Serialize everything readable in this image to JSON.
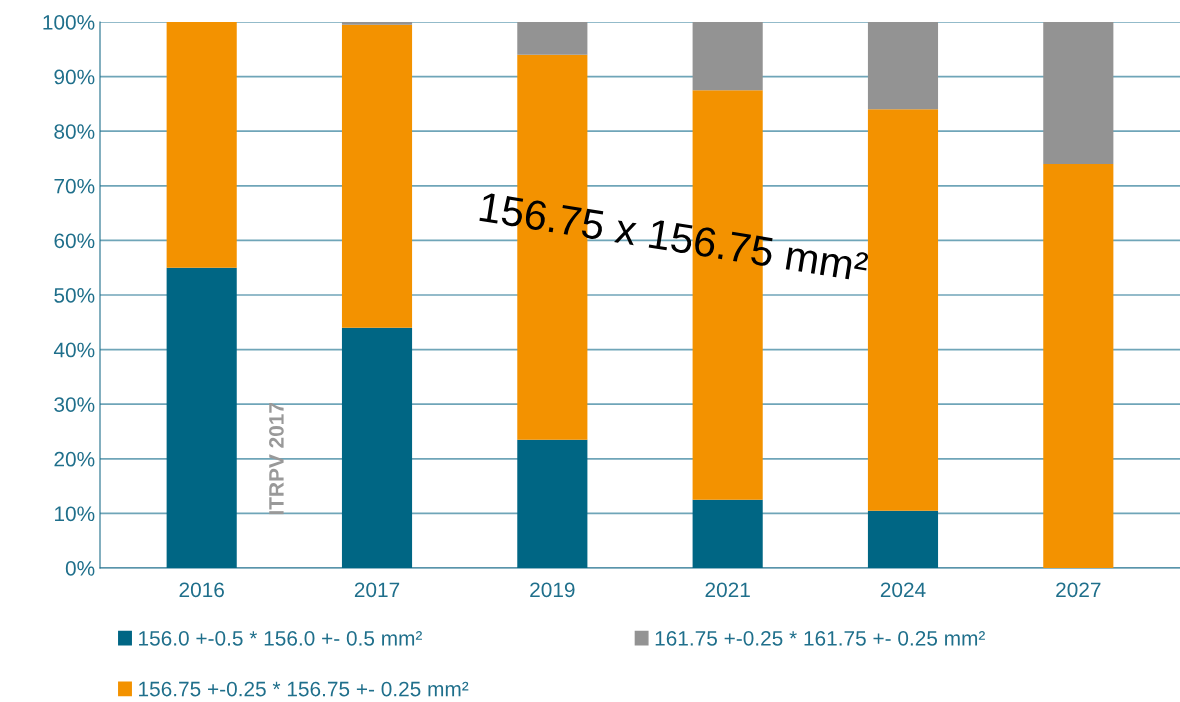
{
  "chart_data": {
    "type": "bar",
    "stacked": true,
    "categories": [
      "2016",
      "2017",
      "2019",
      "2021",
      "2024",
      "2027"
    ],
    "series": [
      {
        "name": "156.0 +-0.5 * 156.0 +- 0.5 mm²",
        "color": "#006684",
        "values": [
          55,
          44,
          23.5,
          12.5,
          10.5,
          0
        ]
      },
      {
        "name": "156.75 +-0.25 * 156.75 +- 0.25 mm²",
        "color": "#f39200",
        "values": [
          45,
          55.5,
          70.5,
          75,
          73.5,
          74
        ]
      },
      {
        "name": "161.75 +-0.25 * 161.75 +- 0.25 mm²",
        "color": "#939393",
        "values": [
          0,
          0.5,
          6,
          12.5,
          16,
          26
        ]
      }
    ],
    "ylim": [
      0,
      100
    ],
    "yticks": [
      {
        "value": 0,
        "label": "0%"
      },
      {
        "value": 10,
        "label": "10%"
      },
      {
        "value": 20,
        "label": "20%"
      },
      {
        "value": 30,
        "label": "30%"
      },
      {
        "value": 40,
        "label": "40%"
      },
      {
        "value": 50,
        "label": "50%"
      },
      {
        "value": 60,
        "label": "60%"
      },
      {
        "value": 70,
        "label": "70%"
      },
      {
        "value": 80,
        "label": "80%"
      },
      {
        "value": 90,
        "label": "90%"
      },
      {
        "value": 100,
        "label": "100%"
      }
    ],
    "grid": "y",
    "legend": "bottom",
    "annotations": [
      "156.75 x 156.75 mm²",
      "ITRPV 2017"
    ]
  }
}
